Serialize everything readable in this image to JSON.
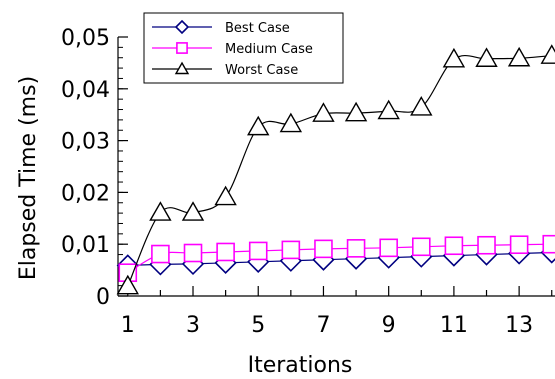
{
  "chart_data": {
    "type": "line",
    "title": "",
    "xlabel": "Iterations",
    "ylabel": "Elapsed Time (ms)",
    "xlim": [
      0.7,
      14.1
    ],
    "ylim": [
      0,
      0.05
    ],
    "xticks": [
      1,
      3,
      5,
      7,
      9,
      11,
      13
    ],
    "xtick_labels": [
      "1",
      "3",
      "5",
      "7",
      "9",
      "11",
      "13"
    ],
    "yticks": [
      0,
      0.01,
      0.02,
      0.03,
      0.04,
      0.05
    ],
    "ytick_labels": [
      "0",
      "0,01",
      "0,02",
      "0,03",
      "0,04",
      "0,05"
    ],
    "x": [
      1,
      2,
      3,
      4,
      5,
      6,
      7,
      8,
      9,
      10,
      11,
      12,
      13,
      14
    ],
    "legend_position": "top-left",
    "series": [
      {
        "name": "Best Case",
        "marker": "diamond",
        "color": "#000080",
        "values": [
          0.0059,
          0.0061,
          0.0062,
          0.0064,
          0.0066,
          0.0068,
          0.007,
          0.0072,
          0.0074,
          0.0076,
          0.0078,
          0.008,
          0.0082,
          0.0084
        ]
      },
      {
        "name": "Medium Case",
        "marker": "square",
        "color": "#ff00ff",
        "values": [
          0.0045,
          0.0081,
          0.0083,
          0.0085,
          0.0087,
          0.0089,
          0.0091,
          0.0092,
          0.0093,
          0.0095,
          0.0097,
          0.0098,
          0.0099,
          0.01
        ]
      },
      {
        "name": "Worst Case",
        "marker": "triangle",
        "color": "#000000",
        "values": [
          0.0019,
          0.0161,
          0.0161,
          0.0191,
          0.0326,
          0.0332,
          0.0352,
          0.0353,
          0.0357,
          0.0364,
          0.0457,
          0.0458,
          0.0459,
          0.0464
        ]
      }
    ]
  }
}
